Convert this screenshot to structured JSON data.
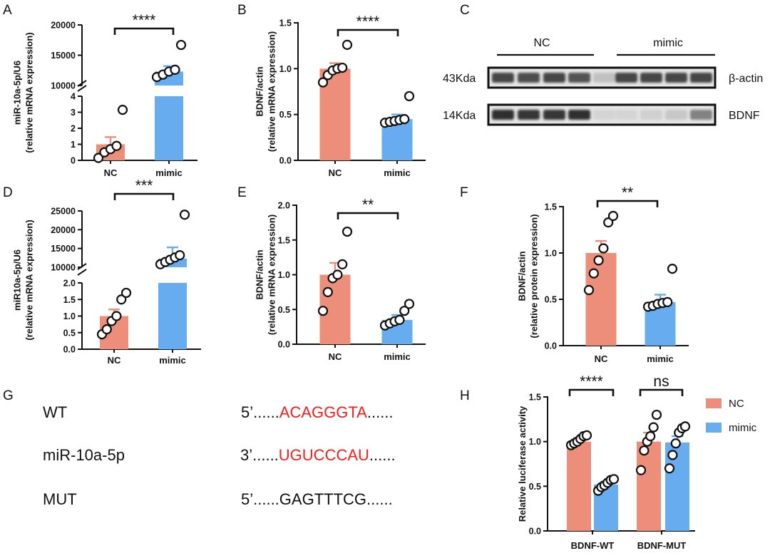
{
  "colors": {
    "nc": "#EC8E79",
    "mimic": "#67ACEF",
    "accent_text": "#FF1A1A",
    "ink": "#111111"
  },
  "panel_letters": {
    "a": "A",
    "b": "B",
    "c": "C",
    "d": "D",
    "e": "E",
    "f": "F",
    "g": "G",
    "h": "H"
  },
  "chart_data": [
    {
      "panel": "A",
      "type": "bar",
      "broken_axis": true,
      "ylabel_lines": [
        "miR-10a-5p/U6",
        "(relative mRNA expression)"
      ],
      "categories": [
        "NC",
        "mimic"
      ],
      "lower_ticks": [
        0,
        1,
        2,
        3,
        4
      ],
      "upper_ticks": [
        10000,
        15000,
        20000
      ],
      "lower_ylim": [
        0,
        4
      ],
      "upper_ylim": [
        10000,
        20000
      ],
      "values": [
        1.0,
        12300
      ],
      "errors": [
        0.45,
        900
      ],
      "points": [
        [
          0.15,
          0.5,
          0.7,
          0.9,
          3.15
        ],
        [
          11400,
          11800,
          12300,
          12600,
          16700
        ]
      ],
      "significance": "****"
    },
    {
      "panel": "B",
      "type": "bar",
      "ylabel_lines": [
        "BDNF/actin",
        "(relative mRNA expression)"
      ],
      "categories": [
        "NC",
        "mimic"
      ],
      "ticks": [
        0.0,
        0.5,
        1.0,
        1.5
      ],
      "tick_labels": [
        "0.0",
        "0.5",
        "1.0",
        "1.5"
      ],
      "ylim": [
        0,
        1.5
      ],
      "values": [
        1.0,
        0.45
      ],
      "errors": [
        0.06,
        0.05
      ],
      "points": [
        [
          0.85,
          0.93,
          0.98,
          1.0,
          1.01,
          1.26
        ],
        [
          0.41,
          0.42,
          0.43,
          0.44,
          0.45,
          0.7
        ]
      ],
      "significance": "****"
    },
    {
      "panel": "D",
      "type": "bar",
      "broken_axis": true,
      "ylabel_lines": [
        "miR10a-5p/U6",
        "(relative mRNA expression)"
      ],
      "categories": [
        "NC",
        "mimic"
      ],
      "lower_ticks": [
        0.0,
        0.5,
        1.0,
        1.5,
        2.0
      ],
      "lower_tick_labels": [
        "0.0",
        "0.5",
        "1.0",
        "1.5",
        "2.0"
      ],
      "upper_ticks": [
        10000,
        15000,
        20000,
        25000
      ],
      "lower_ylim": [
        0,
        2
      ],
      "upper_ylim": [
        10000,
        25000
      ],
      "values": [
        1.0,
        12300
      ],
      "errors": [
        0.2,
        3000
      ],
      "points": [
        [
          0.45,
          0.6,
          0.85,
          1.0,
          1.5,
          1.7
        ],
        [
          10800,
          11400,
          12000,
          12600,
          13200,
          24000
        ]
      ],
      "significance": "***"
    },
    {
      "panel": "E",
      "type": "bar",
      "ylabel_lines": [
        "BDNF/actin",
        "(relative mRNA expression)"
      ],
      "categories": [
        "NC",
        "mimic"
      ],
      "ticks": [
        0.0,
        0.5,
        1.0,
        1.5,
        2.0
      ],
      "tick_labels": [
        "0.0",
        "0.5",
        "1.0",
        "1.5",
        "2.0"
      ],
      "ylim": [
        0,
        2
      ],
      "values": [
        1.0,
        0.35
      ],
      "errors": [
        0.17,
        0.07
      ],
      "points": [
        [
          0.48,
          0.75,
          0.95,
          1.0,
          1.15,
          1.62
        ],
        [
          0.27,
          0.3,
          0.33,
          0.35,
          0.48,
          0.58
        ]
      ],
      "significance": "**"
    },
    {
      "panel": "F",
      "type": "bar",
      "ylabel_lines": [
        "BDNF/actin",
        "(relative protein expression)"
      ],
      "categories": [
        "NC",
        "mimic"
      ],
      "ticks": [
        0.0,
        0.5,
        1.0,
        1.5
      ],
      "tick_labels": [
        "0.0",
        "0.5",
        "1.0",
        "1.5"
      ],
      "ylim": [
        0,
        1.5
      ],
      "values": [
        1.0,
        0.47
      ],
      "errors": [
        0.13,
        0.08
      ],
      "points": [
        [
          0.6,
          0.78,
          0.92,
          1.05,
          1.33,
          1.4
        ],
        [
          0.42,
          0.43,
          0.45,
          0.46,
          0.47,
          0.83
        ]
      ],
      "significance": "**"
    },
    {
      "panel": "H",
      "type": "bar",
      "grouped": true,
      "ylabel_lines": [
        "Relative luciferase activity"
      ],
      "categories": [
        "BDNF-WT",
        "BDNF-MUT"
      ],
      "ticks": [
        0.0,
        0.5,
        1.0,
        1.5
      ],
      "tick_labels": [
        "0.0",
        "0.5",
        "1.0",
        "1.5"
      ],
      "ylim": [
        0,
        1.5
      ],
      "series": [
        {
          "name": "NC",
          "values": [
            1.0,
            1.0
          ],
          "errors": [
            0.04,
            0.1
          ],
          "points": [
            [
              0.96,
              0.98,
              1.0,
              1.03,
              1.06,
              1.07
            ],
            [
              0.68,
              0.9,
              1.0,
              1.06,
              1.16,
              1.3
            ]
          ]
        },
        {
          "name": "mimic",
          "values": [
            0.52,
            0.99
          ],
          "errors": [
            0.03,
            0.07
          ],
          "points": [
            [
              0.45,
              0.49,
              0.51,
              0.54,
              0.57,
              0.58
            ],
            [
              0.7,
              0.85,
              0.98,
              1.1,
              1.15,
              1.17
            ]
          ]
        }
      ],
      "significance": [
        "****",
        "ns"
      ],
      "legend": [
        "NC",
        "mimic"
      ],
      "legend_position": "top-right"
    }
  ],
  "western_blot": {
    "groups": [
      "NC",
      "mimic"
    ],
    "bands": [
      {
        "kda": "43Kda",
        "protein": "β-actin"
      },
      {
        "kda": "14Kda",
        "protein": "BDNF"
      }
    ]
  },
  "sequences": [
    {
      "name": "WT",
      "prefix": "5’......",
      "core": "ACAGGGTA",
      "suffix": "......",
      "highlight": true
    },
    {
      "name": "miR-10a-5p",
      "prefix": "3’......",
      "core": "UGUCCCAU",
      "suffix": "......",
      "highlight": true
    },
    {
      "name": "MUT",
      "prefix": "5’......",
      "core": "GAGTTTCG",
      "suffix": "......",
      "highlight": false
    }
  ]
}
